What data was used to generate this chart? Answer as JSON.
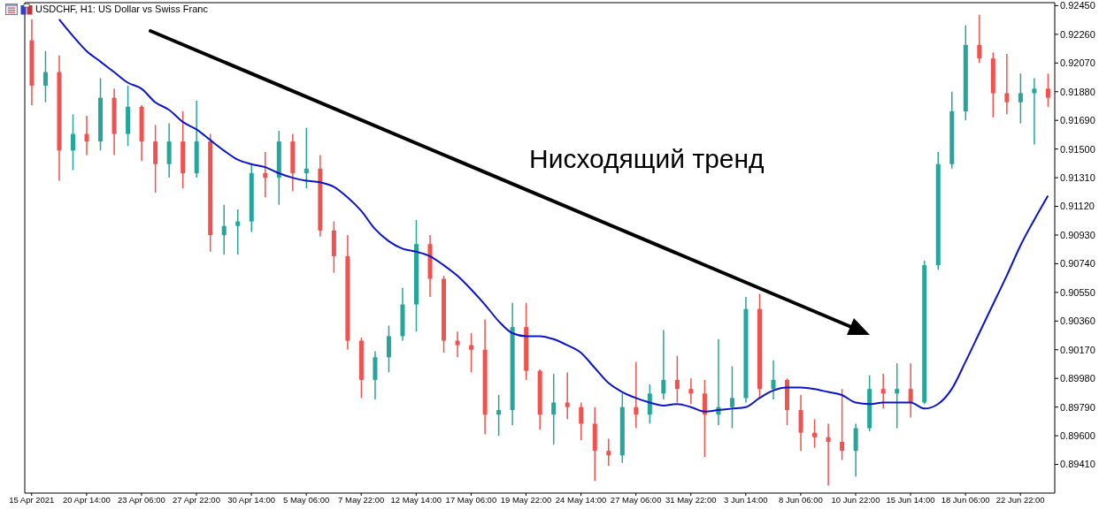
{
  "chart_data": {
    "type": "candlestick",
    "title": "USDCHF, H1: US Dollar vs Swiss Franc",
    "categories": [
      "15 Apr 2021",
      null,
      null,
      null,
      "20 Apr 14:00",
      null,
      null,
      null,
      "23 Apr 06:00",
      null,
      null,
      null,
      "27 Apr 22:00",
      null,
      null,
      null,
      "30 Apr 14:00",
      null,
      null,
      null,
      "5 May 06:00",
      null,
      null,
      null,
      "7 May 22:00",
      null,
      null,
      null,
      "12 May 14:00",
      null,
      null,
      null,
      "17 May 06:00",
      null,
      null,
      null,
      "19 May 22:00",
      null,
      null,
      null,
      "24 May 14:00",
      null,
      null,
      null,
      "27 May 06:00",
      null,
      null,
      null,
      "31 May 22:00",
      null,
      null,
      null,
      "3 Jun 14:00",
      null,
      null,
      null,
      "8 Jun 06:00",
      null,
      null,
      null,
      "10 Jun 22:00",
      null,
      null,
      null,
      "15 Jun 14:00",
      null,
      null,
      null,
      "18 Jun 06:00",
      null,
      null,
      null,
      "22 Jun 22:00",
      null,
      null
    ],
    "ohlc": [
      [
        0.9222,
        0.9236,
        0.9179,
        0.9192
      ],
      [
        0.9192,
        0.9215,
        0.9181,
        0.9201
      ],
      [
        0.9201,
        0.9212,
        0.9129,
        0.9149
      ],
      [
        0.9149,
        0.9173,
        0.9136,
        0.916
      ],
      [
        0.916,
        0.9172,
        0.9146,
        0.9155
      ],
      [
        0.9155,
        0.9197,
        0.9149,
        0.9184
      ],
      [
        0.9184,
        0.919,
        0.9146,
        0.916
      ],
      [
        0.916,
        0.9192,
        0.9152,
        0.9178
      ],
      [
        0.9178,
        0.9179,
        0.9142,
        0.9155
      ],
      [
        0.9155,
        0.9166,
        0.9121,
        0.914
      ],
      [
        0.914,
        0.9167,
        0.9131,
        0.9155
      ],
      [
        0.9155,
        0.9175,
        0.9124,
        0.9134
      ],
      [
        0.9134,
        0.9182,
        0.9131,
        0.9155
      ],
      [
        0.9155,
        0.916,
        0.9082,
        0.9093
      ],
      [
        0.9093,
        0.9113,
        0.908,
        0.9099
      ],
      [
        0.9099,
        0.911,
        0.908,
        0.9102
      ],
      [
        0.9102,
        0.914,
        0.9095,
        0.9134
      ],
      [
        0.9134,
        0.9148,
        0.9118,
        0.9131
      ],
      [
        0.9131,
        0.9162,
        0.9113,
        0.9155
      ],
      [
        0.9155,
        0.916,
        0.9122,
        0.9134
      ],
      [
        0.9134,
        0.9164,
        0.9124,
        0.9137
      ],
      [
        0.9137,
        0.9146,
        0.9092,
        0.9096
      ],
      [
        0.9096,
        0.9102,
        0.9068,
        0.9079
      ],
      [
        0.9079,
        0.9093,
        0.9017,
        0.9023
      ],
      [
        0.9023,
        0.9025,
        0.8985,
        0.8997
      ],
      [
        0.8997,
        0.9016,
        0.8984,
        0.9012
      ],
      [
        0.9012,
        0.9033,
        0.9002,
        0.9026
      ],
      [
        0.9026,
        0.9058,
        0.9023,
        0.9047
      ],
      [
        0.9047,
        0.9103,
        0.9029,
        0.9087
      ],
      [
        0.9087,
        0.9093,
        0.9052,
        0.9064
      ],
      [
        0.9064,
        0.9066,
        0.9015,
        0.9023
      ],
      [
        0.9023,
        0.9029,
        0.9012,
        0.902
      ],
      [
        0.902,
        0.9028,
        0.9002,
        0.9017
      ],
      [
        0.9017,
        0.9037,
        0.8961,
        0.8974
      ],
      [
        0.8974,
        0.8987,
        0.896,
        0.8977
      ],
      [
        0.8977,
        0.9048,
        0.8967,
        0.9032
      ],
      [
        0.9032,
        0.9048,
        0.8997,
        0.9003
      ],
      [
        0.9003,
        0.9004,
        0.8964,
        0.8974
      ],
      [
        0.8974,
        0.9001,
        0.8954,
        0.8982
      ],
      [
        0.8982,
        0.9002,
        0.8971,
        0.8979
      ],
      [
        0.8979,
        0.8982,
        0.8957,
        0.8968
      ],
      [
        0.8968,
        0.8979,
        0.893,
        0.895
      ],
      [
        0.895,
        0.8958,
        0.894,
        0.8947
      ],
      [
        0.8947,
        0.8988,
        0.8942,
        0.8979
      ],
      [
        0.8979,
        0.9009,
        0.8965,
        0.8974
      ],
      [
        0.8974,
        0.8994,
        0.8968,
        0.8988
      ],
      [
        0.8988,
        0.903,
        0.8984,
        0.8997
      ],
      [
        0.8997,
        0.9013,
        0.8982,
        0.8991
      ],
      [
        0.8991,
        0.8998,
        0.8981,
        0.8988
      ],
      [
        0.8988,
        0.8997,
        0.8946,
        0.8974
      ],
      [
        0.8974,
        0.9024,
        0.8967,
        0.8979
      ],
      [
        0.8979,
        0.9006,
        0.8965,
        0.8985
      ],
      [
        0.8985,
        0.9052,
        0.8982,
        0.9044
      ],
      [
        0.9044,
        0.9054,
        0.8985,
        0.8991
      ],
      [
        0.8991,
        0.901,
        0.8984,
        0.8997
      ],
      [
        0.8997,
        0.8998,
        0.8967,
        0.8977
      ],
      [
        0.8977,
        0.8987,
        0.895,
        0.8962
      ],
      [
        0.8962,
        0.8971,
        0.8952,
        0.8959
      ],
      [
        0.8959,
        0.8968,
        0.8927,
        0.8956
      ],
      [
        0.8956,
        0.8991,
        0.8944,
        0.895
      ],
      [
        0.895,
        0.8968,
        0.8933,
        0.8965
      ],
      [
        0.8965,
        0.9,
        0.8963,
        0.8991
      ],
      [
        0.8991,
        0.9001,
        0.8978,
        0.8988
      ],
      [
        0.8988,
        0.9008,
        0.8965,
        0.8991
      ],
      [
        0.8991,
        0.9008,
        0.8972,
        0.8982
      ],
      [
        0.8982,
        0.9076,
        0.8981,
        0.9073
      ],
      [
        0.9073,
        0.9148,
        0.907,
        0.914
      ],
      [
        0.914,
        0.9188,
        0.9137,
        0.9175
      ],
      [
        0.9175,
        0.9232,
        0.9169,
        0.9219
      ],
      [
        0.9219,
        0.9239,
        0.9207,
        0.921
      ],
      [
        0.921,
        0.9214,
        0.9171,
        0.9187
      ],
      [
        0.9187,
        0.9213,
        0.9173,
        0.9181
      ],
      [
        0.9181,
        0.92,
        0.9167,
        0.9187
      ],
      [
        0.9187,
        0.9197,
        0.9153,
        0.919
      ],
      [
        0.919,
        0.92,
        0.9178,
        0.9184
      ]
    ],
    "colors": [
      "#ef5350",
      "#26a69a",
      "#ef5350",
      "#26a69a",
      "#ef5350",
      "#26a69a",
      "#ef5350",
      "#26a69a",
      "#ef5350",
      "#ef5350",
      "#26a69a",
      "#ef5350",
      "#26a69a",
      "#ef5350",
      "#26a69a",
      "#26a69a",
      "#26a69a",
      "#ef5350",
      "#26a69a",
      "#ef5350",
      "#26a69a",
      "#ef5350",
      "#ef5350",
      "#ef5350",
      "#ef5350",
      "#26a69a",
      "#26a69a",
      "#26a69a",
      "#26a69a",
      "#ef5350",
      "#ef5350",
      "#ef5350",
      "#ef5350",
      "#ef5350",
      "#26a69a",
      "#26a69a",
      "#ef5350",
      "#ef5350",
      "#26a69a",
      "#ef5350",
      "#ef5350",
      "#ef5350",
      "#ef5350",
      "#26a69a",
      "#ef5350",
      "#26a69a",
      "#26a69a",
      "#ef5350",
      "#ef5350",
      "#ef5350",
      "#26a69a",
      "#26a69a",
      "#26a69a",
      "#ef5350",
      "#26a69a",
      "#ef5350",
      "#ef5350",
      "#ef5350",
      "#ef5350",
      "#ef5350",
      "#26a69a",
      "#26a69a",
      "#ef5350",
      "#26a69a",
      "#ef5350",
      "#26a69a",
      "#26a69a",
      "#26a69a",
      "#26a69a",
      "#ef5350",
      "#ef5350",
      "#ef5350",
      "#26a69a",
      "#26a69a",
      "#ef5350"
    ],
    "series": [
      {
        "type": "line",
        "color": "#0a14c8",
        "values": [
          null,
          null,
          0.9236,
          0.9225,
          0.9215,
          0.9208,
          0.9201,
          0.9194,
          0.919,
          0.9181,
          0.9176,
          0.9168,
          0.9163,
          0.9156,
          0.9149,
          0.9143,
          0.914,
          0.9138,
          0.9134,
          0.9131,
          0.9129,
          0.9128,
          0.9125,
          0.9118,
          0.9109,
          0.9097,
          0.9089,
          0.9084,
          0.9082,
          0.9079,
          0.9073,
          0.9066,
          0.9057,
          0.9047,
          0.9036,
          0.9028,
          0.9026,
          0.9026,
          0.9024,
          0.902,
          0.9015,
          0.9005,
          0.8995,
          0.8989,
          0.8985,
          0.8982,
          0.898,
          0.8981,
          0.8979,
          0.8976,
          0.8977,
          0.8978,
          0.8979,
          0.8985,
          0.899,
          0.8992,
          0.8992,
          0.8991,
          0.8989,
          0.8987,
          0.8982,
          0.8981,
          0.8982,
          0.8982,
          0.8982,
          0.8978,
          0.8981,
          0.8991,
          0.9009,
          0.9028,
          0.9047,
          0.9066,
          0.9086,
          0.9103,
          0.9119
        ]
      }
    ],
    "ylim": [
      0.8922,
      0.9247
    ],
    "yticks": [
      {
        "value": 0.9245,
        "label": "0.92450"
      },
      {
        "value": 0.9226,
        "label": "0.92260"
      },
      {
        "value": 0.9207,
        "label": "0.92070"
      },
      {
        "value": 0.9188,
        "label": "0.91880"
      },
      {
        "value": 0.9169,
        "label": "0.91690"
      },
      {
        "value": 0.915,
        "label": "0.91500"
      },
      {
        "value": 0.9131,
        "label": "0.91310"
      },
      {
        "value": 0.9112,
        "label": "0.91120"
      },
      {
        "value": 0.9093,
        "label": "0.90930"
      },
      {
        "value": 0.9074,
        "label": "0.90740"
      },
      {
        "value": 0.9055,
        "label": "0.90550"
      },
      {
        "value": 0.9036,
        "label": "0.90360"
      },
      {
        "value": 0.9017,
        "label": "0.90170"
      },
      {
        "value": 0.8998,
        "label": "0.89980"
      },
      {
        "value": 0.8979,
        "label": "0.89790"
      },
      {
        "value": 0.896,
        "label": "0.89600"
      },
      {
        "value": 0.8941,
        "label": "0.89410"
      }
    ],
    "annotations": [
      "Нисходящий тренд"
    ],
    "marker": "none"
  }
}
